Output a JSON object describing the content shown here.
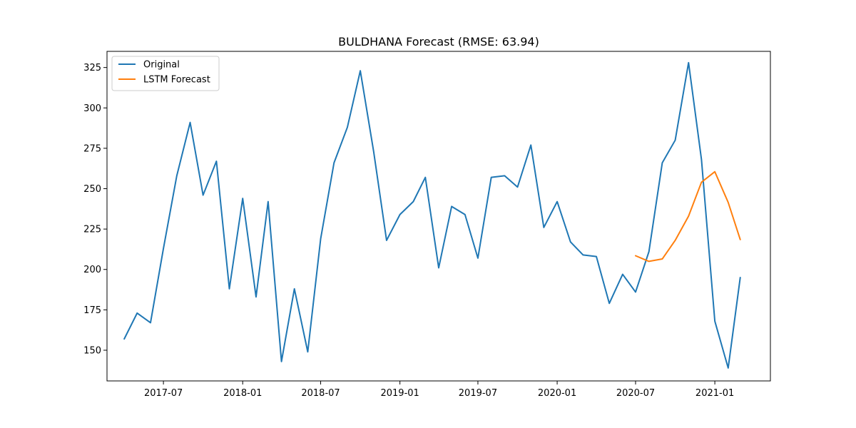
{
  "chart_data": {
    "type": "line",
    "title": "BULDHANA Forecast (RMSE: 63.94)",
    "xlabel": "",
    "ylabel": "",
    "xlim": [
      "2017-02-20",
      "2021-05-10"
    ],
    "ylim": [
      131,
      335
    ],
    "x_ticks": [
      "2017-07",
      "2018-01",
      "2018-07",
      "2019-01",
      "2019-07",
      "2020-01",
      "2020-07",
      "2021-01"
    ],
    "y_ticks": [
      150,
      175,
      200,
      225,
      250,
      275,
      300,
      325
    ],
    "grid": false,
    "legend_position": "top-left",
    "series": [
      {
        "name": "Original",
        "color": "#1f77b4",
        "x": [
          "2017-04",
          "2017-05",
          "2017-06",
          "2017-07",
          "2017-08",
          "2017-09",
          "2017-10",
          "2017-11",
          "2017-12",
          "2018-01",
          "2018-02",
          "2018-03",
          "2018-04",
          "2018-05",
          "2018-06",
          "2018-07",
          "2018-08",
          "2018-09",
          "2018-10",
          "2018-11",
          "2018-12",
          "2019-01",
          "2019-02",
          "2019-03",
          "2019-04",
          "2019-05",
          "2019-06",
          "2019-07",
          "2019-08",
          "2019-09",
          "2019-10",
          "2019-11",
          "2019-12",
          "2020-01",
          "2020-02",
          "2020-03",
          "2020-04",
          "2020-05",
          "2020-06",
          "2020-07",
          "2020-08",
          "2020-09",
          "2020-10",
          "2020-11",
          "2020-12",
          "2021-01",
          "2021-02",
          "2021-03"
        ],
        "values": [
          157,
          173,
          167,
          213,
          258,
          291,
          246,
          267,
          188,
          244,
          183,
          242,
          143,
          188,
          149,
          219,
          266,
          288,
          323,
          273,
          218,
          234,
          242,
          257,
          201,
          239,
          234,
          207,
          257,
          258,
          251,
          277,
          226,
          242,
          217,
          209,
          208,
          179,
          197,
          186,
          211,
          266,
          280,
          328,
          268,
          168,
          139,
          195
        ]
      },
      {
        "name": "LSTM Forecast",
        "color": "#ff7f0e",
        "x": [
          "2020-07",
          "2020-08",
          "2020-09",
          "2020-10",
          "2020-11",
          "2020-12",
          "2021-01",
          "2021-02",
          "2021-03"
        ],
        "values": [
          208.5,
          205,
          206.5,
          218,
          233,
          254,
          260.5,
          241.5,
          218.5
        ]
      }
    ]
  }
}
